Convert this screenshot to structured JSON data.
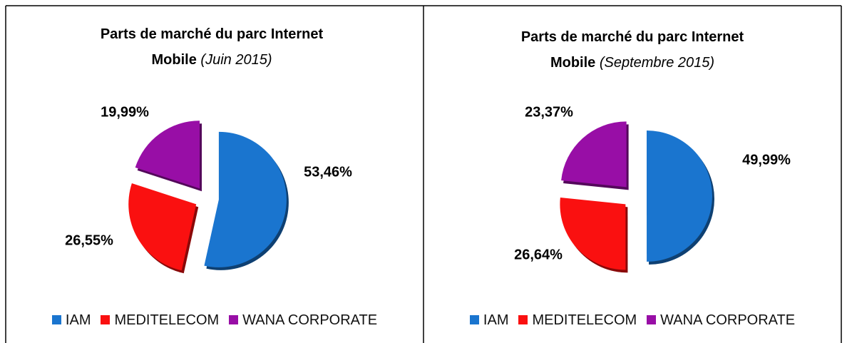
{
  "chart_data": [
    {
      "type": "pie",
      "title": "Parts de marché du parc Internet Mobile",
      "subtitle": "(Juin 2015)",
      "categories": [
        "IAM",
        "MEDITELECOM",
        "WANA CORPORATE"
      ],
      "values": [
        53.46,
        26.55,
        19.99
      ],
      "value_labels": [
        "53,46%",
        "26,55%",
        "19,99%"
      ],
      "colors": [
        "#1a75cf",
        "#fa1010",
        "#980ea6"
      ],
      "legend": "bottom"
    },
    {
      "type": "pie",
      "title": "Parts de marché du parc Internet Mobile",
      "subtitle": "(Septembre 2015)",
      "categories": [
        "IAM",
        "MEDITELECOM",
        "WANA CORPORATE"
      ],
      "values": [
        49.99,
        26.64,
        23.37
      ],
      "value_labels": [
        "49,99%",
        "26,64%",
        "23,37%"
      ],
      "colors": [
        "#1a75cf",
        "#fa1010",
        "#980ea6"
      ],
      "legend": "bottom"
    }
  ]
}
